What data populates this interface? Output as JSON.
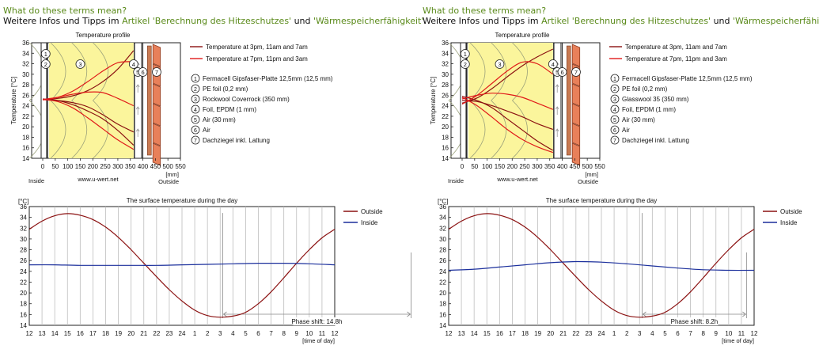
{
  "panels": [
    {
      "question": "What do these terms mean?",
      "info_prefix": "Weitere Infos und Tipps im",
      "link1": "Artikel 'Berechnung des Hitzeschutzes'",
      "info_and": "und",
      "link2": "'Wärmespeicherfähigkeit'",
      "info_suffix": "."
    },
    {
      "question": "What do these terms mean?",
      "info_prefix": "Weitere Infos und Tipps im",
      "link1": "Artikel 'Berechnung des Hitzeschutzes'",
      "info_and": "und",
      "link2": "'Wärmespeicherfähigkeit'",
      "info_suffix": "."
    }
  ],
  "colors": {
    "dark_red": "#8b1111",
    "red": "#e01a1a",
    "blue": "#1b2f9c",
    "insulation": "#fbf59c",
    "tile": "#e8805a",
    "link_green": "#5a8a1a",
    "grid": "#bdbdbd"
  },
  "chart_data": [
    {
      "type": "line",
      "title": "Temperature profile",
      "ylabel": "Temperature [°C]",
      "xlabel": "[mm]",
      "x_ticks": [
        0,
        50,
        100,
        150,
        200,
        250,
        300,
        350,
        400,
        450,
        500,
        550
      ],
      "ylim": [
        14,
        36
      ],
      "y_ticks": [
        14,
        16,
        18,
        20,
        22,
        24,
        26,
        28,
        30,
        32,
        34,
        36
      ],
      "inside_label": "Inside",
      "outside_label": "Outside",
      "watermark": "www.u-wert.net",
      "layer_markers": [
        "1",
        "2",
        "3",
        "4",
        "5",
        "6",
        "7"
      ],
      "legend": [
        {
          "label": "Temperature at 3pm, 11am and 7am",
          "color": "dark_red"
        },
        {
          "label": "Temperature at 7pm, 11pm and 3am",
          "color": "red"
        }
      ],
      "layers": [
        {
          "num": "1",
          "label": "Fermacell Gipsfaser-Platte 12,5mm (12,5 mm)"
        },
        {
          "num": "2",
          "label": "PE foil (0,2 mm)"
        },
        {
          "num": "3",
          "label": "Rockwool Coverrock (350 mm)"
        },
        {
          "num": "4",
          "label": "Foil, EPDM (1 mm)"
        },
        {
          "num": "5",
          "label": "Air (30 mm)"
        },
        {
          "num": "6",
          "label": "Air"
        },
        {
          "num": "7",
          "label": "Dachziegel inkl. Lattung"
        }
      ],
      "series": [
        {
          "name": "3pm",
          "color": "dark_red",
          "x": [
            0,
            60,
            120,
            180,
            240,
            300,
            363
          ],
          "y": [
            25.2,
            25.4,
            25.9,
            26.9,
            28.6,
            31.0,
            34.5
          ]
        },
        {
          "name": "11am",
          "color": "dark_red",
          "x": [
            0,
            60,
            120,
            180,
            240,
            300,
            363
          ],
          "y": [
            25.2,
            25.0,
            24.6,
            23.8,
            22.3,
            20.5,
            19.0
          ]
        },
        {
          "name": "7am",
          "color": "dark_red",
          "x": [
            0,
            60,
            120,
            180,
            240,
            300,
            363
          ],
          "y": [
            25.3,
            25.0,
            24.2,
            23.0,
            21.5,
            19.3,
            16.5
          ]
        },
        {
          "name": "7pm",
          "color": "red",
          "x": [
            0,
            60,
            120,
            180,
            240,
            300,
            363
          ],
          "y": [
            25.1,
            25.6,
            26.8,
            28.6,
            30.6,
            32.2,
            32.4
          ]
        },
        {
          "name": "11pm",
          "color": "red",
          "x": [
            0,
            60,
            120,
            180,
            240,
            300,
            363
          ],
          "y": [
            25.2,
            25.6,
            26.2,
            26.6,
            26.5,
            25.4,
            24.0
          ]
        },
        {
          "name": "3am",
          "color": "red",
          "x": [
            0,
            60,
            120,
            180,
            240,
            300,
            363
          ],
          "y": [
            25.2,
            24.8,
            23.6,
            21.7,
            19.6,
            17.5,
            15.7
          ]
        }
      ]
    },
    {
      "type": "line",
      "title": "The surface temperature during the day",
      "ylabel": "[°C]",
      "xlabel": "[time of day]",
      "ylim": [
        14,
        36
      ],
      "y_ticks": [
        14,
        16,
        18,
        20,
        22,
        24,
        26,
        28,
        30,
        32,
        34,
        36
      ],
      "x_tick_labels": [
        "12",
        "13",
        "14",
        "15",
        "16",
        "17",
        "18",
        "19",
        "20",
        "21",
        "22",
        "23",
        "24",
        "1",
        "2",
        "3",
        "4",
        "5",
        "6",
        "7",
        "8",
        "9",
        "10",
        "11",
        "12"
      ],
      "annotation": "Phase shift: 14.8h",
      "phase_from": 15.2,
      "phase_to": 30.0,
      "series": [
        {
          "name": "Outside",
          "color": "dark_red",
          "x": [
            0,
            1,
            2,
            3,
            4,
            5,
            6,
            7,
            8,
            9,
            10,
            11,
            12,
            13,
            14,
            15,
            16,
            17,
            18,
            19,
            20,
            21,
            22,
            23,
            24
          ],
          "y": [
            31.8,
            33.3,
            34.3,
            34.7,
            34.4,
            33.6,
            32.2,
            30.3,
            28.0,
            25.5,
            23.0,
            20.6,
            18.5,
            16.8,
            15.8,
            15.5,
            15.7,
            16.4,
            18.0,
            20.2,
            22.8,
            25.5,
            28.0,
            30.2,
            31.8
          ]
        },
        {
          "name": "Inside",
          "color": "blue",
          "x": [
            0,
            2,
            4,
            6,
            8,
            10,
            12,
            14,
            16,
            18,
            20,
            22,
            24
          ],
          "y": [
            25.2,
            25.2,
            25.1,
            25.1,
            25.1,
            25.1,
            25.2,
            25.3,
            25.4,
            25.5,
            25.5,
            25.4,
            25.2
          ]
        }
      ]
    },
    {
      "type": "line",
      "title": "Temperature profile",
      "ylabel": "Temperature [°C]",
      "xlabel": "[mm]",
      "x_ticks": [
        0,
        50,
        100,
        150,
        200,
        250,
        300,
        350,
        400,
        450,
        500,
        550
      ],
      "ylim": [
        14,
        36
      ],
      "y_ticks": [
        14,
        16,
        18,
        20,
        22,
        24,
        26,
        28,
        30,
        32,
        34,
        36
      ],
      "inside_label": "Inside",
      "outside_label": "Outside",
      "watermark": "www.u-wert.net",
      "layer_markers": [
        "1",
        "2",
        "3",
        "4",
        "5",
        "6",
        "7"
      ],
      "legend": [
        {
          "label": "Temperature at 3pm, 11am and 7am",
          "color": "dark_red"
        },
        {
          "label": "Temperature at 7pm, 11pm and 3am",
          "color": "red"
        }
      ],
      "layers": [
        {
          "num": "1",
          "label": "Fermacell Gipsfaser-Platte 12,5mm (12,5 mm)"
        },
        {
          "num": "2",
          "label": "PE foil (0,2 mm)"
        },
        {
          "num": "3",
          "label": "Glasswool 35 (350 mm)"
        },
        {
          "num": "4",
          "label": "Foil, EPDM (1 mm)"
        },
        {
          "num": "5",
          "label": "Air (30 mm)"
        },
        {
          "num": "6",
          "label": "Air"
        },
        {
          "num": "7",
          "label": "Dachziegel inkl. Lattung"
        }
      ],
      "series": [
        {
          "name": "3pm",
          "color": "dark_red",
          "x": [
            0,
            60,
            120,
            180,
            240,
            300,
            363
          ],
          "y": [
            24.5,
            25.5,
            27.3,
            29.5,
            31.6,
            33.3,
            34.8
          ]
        },
        {
          "name": "11am",
          "color": "dark_red",
          "x": [
            0,
            60,
            120,
            180,
            240,
            300,
            363
          ],
          "y": [
            25.0,
            24.8,
            24.0,
            23.0,
            21.9,
            20.6,
            19.5
          ]
        },
        {
          "name": "7am",
          "color": "dark_red",
          "x": [
            0,
            60,
            120,
            180,
            240,
            300,
            363
          ],
          "y": [
            25.8,
            25.0,
            23.6,
            21.5,
            19.4,
            17.3,
            15.5
          ]
        },
        {
          "name": "7pm",
          "color": "red",
          "x": [
            0,
            60,
            120,
            180,
            240,
            300,
            363
          ],
          "y": [
            24.3,
            26.0,
            28.3,
            30.6,
            32.3,
            32.0,
            30.0
          ]
        },
        {
          "name": "11pm",
          "color": "red",
          "x": [
            0,
            60,
            120,
            180,
            240,
            300,
            363
          ],
          "y": [
            25.3,
            26.0,
            26.4,
            26.2,
            25.6,
            24.5,
            23.3
          ]
        },
        {
          "name": "3am",
          "color": "red",
          "x": [
            0,
            60,
            120,
            180,
            240,
            300,
            363
          ],
          "y": [
            25.6,
            24.0,
            21.8,
            19.5,
            17.6,
            16.2,
            15.1
          ]
        }
      ]
    },
    {
      "type": "line",
      "title": "The surface temperature during the day",
      "ylabel": "[°C]",
      "xlabel": "[time of day]",
      "ylim": [
        14,
        36
      ],
      "y_ticks": [
        14,
        16,
        18,
        20,
        22,
        24,
        26,
        28,
        30,
        32,
        34,
        36
      ],
      "x_tick_labels": [
        "12",
        "13",
        "14",
        "15",
        "16",
        "17",
        "18",
        "19",
        "20",
        "21",
        "22",
        "23",
        "24",
        "1",
        "2",
        "3",
        "4",
        "5",
        "6",
        "7",
        "8",
        "9",
        "10",
        "11",
        "12"
      ],
      "annotation": "Phase shift: 8.2h",
      "phase_from": 15.2,
      "phase_to": 23.4,
      "series": [
        {
          "name": "Outside",
          "color": "dark_red",
          "x": [
            0,
            1,
            2,
            3,
            4,
            5,
            6,
            7,
            8,
            9,
            10,
            11,
            12,
            13,
            14,
            15,
            16,
            17,
            18,
            19,
            20,
            21,
            22,
            23,
            24
          ],
          "y": [
            31.8,
            33.3,
            34.3,
            34.7,
            34.4,
            33.6,
            32.2,
            30.3,
            28.0,
            25.5,
            23.0,
            20.6,
            18.5,
            16.8,
            15.8,
            15.5,
            15.7,
            16.4,
            18.0,
            20.2,
            22.8,
            25.5,
            28.0,
            30.2,
            31.8
          ]
        },
        {
          "name": "Inside",
          "color": "blue",
          "x": [
            0,
            2,
            4,
            6,
            8,
            10,
            12,
            14,
            16,
            18,
            20,
            22,
            24
          ],
          "y": [
            24.2,
            24.4,
            24.8,
            25.2,
            25.6,
            25.8,
            25.7,
            25.4,
            25.0,
            24.6,
            24.3,
            24.2,
            24.2
          ]
        }
      ]
    }
  ]
}
